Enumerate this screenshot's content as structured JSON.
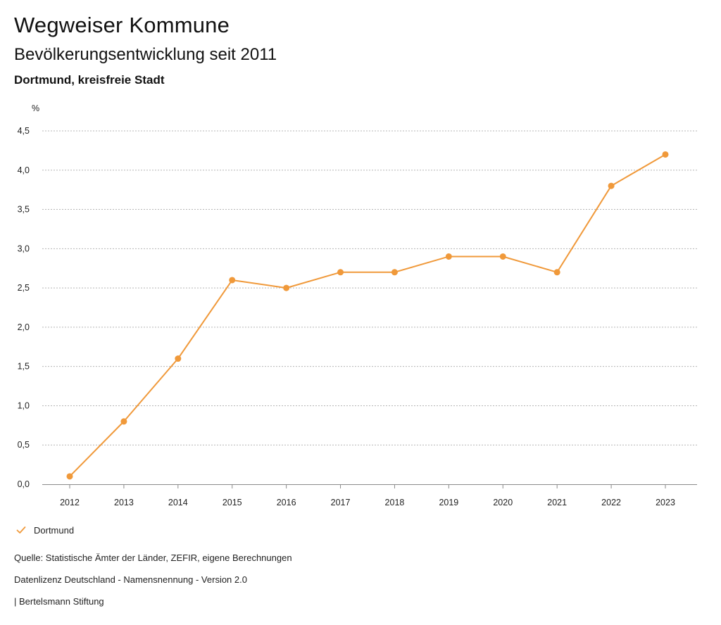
{
  "header": {
    "title": "Wegweiser Kommune",
    "subtitle": "Bevölkerungsentwicklung seit 2011",
    "region": "Dortmund, kreisfreie Stadt"
  },
  "colors": {
    "series": "#f0993a",
    "grid": "#b5b5b5",
    "axis": "#8a8a8a"
  },
  "chart_data": {
    "type": "line",
    "title": "Bevölkerungsentwicklung seit 2011",
    "xlabel": "",
    "ylabel": "%",
    "categories": [
      "2012",
      "2013",
      "2014",
      "2015",
      "2016",
      "2017",
      "2018",
      "2019",
      "2020",
      "2021",
      "2022",
      "2023"
    ],
    "ylim": [
      0,
      4.5
    ],
    "y_ticks": [
      {
        "value": 0,
        "label": "0,0"
      },
      {
        "value": 0.5,
        "label": "0,5"
      },
      {
        "value": 1,
        "label": "1,0"
      },
      {
        "value": 1.5,
        "label": "1,5"
      },
      {
        "value": 2,
        "label": "2,0"
      },
      {
        "value": 2.5,
        "label": "2,5"
      },
      {
        "value": 3,
        "label": "3,0"
      },
      {
        "value": 3.5,
        "label": "3,5"
      },
      {
        "value": 4,
        "label": "4,0"
      },
      {
        "value": 4.5,
        "label": "4,5"
      }
    ],
    "grid": true,
    "legend_position": "bottom-left",
    "series": [
      {
        "name": "Dortmund",
        "values": [
          0.1,
          0.8,
          1.6,
          2.6,
          2.5,
          2.7,
          2.7,
          2.9,
          2.9,
          2.7,
          3.8,
          4.2
        ]
      }
    ]
  },
  "legend": {
    "label": "Dortmund"
  },
  "footer": {
    "source": "Quelle: Statistische Ämter der Länder, ZEFIR, eigene Berechnungen",
    "license": "Datenlizenz Deutschland - Namensnennung - Version 2.0",
    "publisher": "| Bertelsmann Stiftung"
  }
}
